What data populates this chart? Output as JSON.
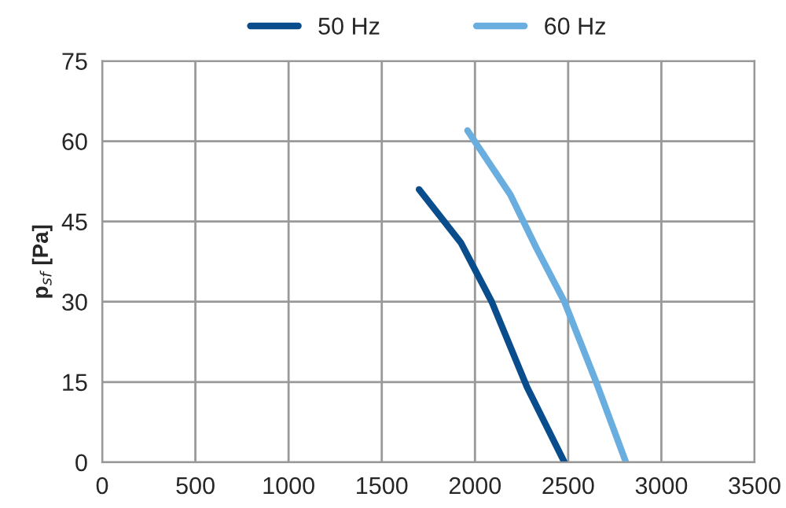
{
  "chart_data": {
    "type": "line",
    "ylabel": "p$_{sf}$ [Pa]",
    "xlim": [
      0,
      3500
    ],
    "xticks": [
      0,
      500,
      1000,
      1500,
      2000,
      2500,
      3000,
      3500
    ],
    "ylim": [
      0,
      75
    ],
    "yticks": [
      0,
      15,
      30,
      45,
      60,
      75
    ],
    "grid": true,
    "legend": "top",
    "marker": "none",
    "line_style": "solid",
    "series": [
      {
        "name": "50 Hz",
        "color": "#0a4d8c",
        "x": [
          1700,
          1925,
          2090,
          2280,
          2480
        ],
        "values": [
          51,
          41,
          30,
          14,
          0
        ]
      },
      {
        "name": "60 Hz",
        "color": "#6aaee0",
        "x": [
          1960,
          2190,
          2330,
          2480,
          2650,
          2810
        ],
        "values": [
          62,
          50,
          40,
          30,
          15,
          0
        ]
      }
    ]
  }
}
